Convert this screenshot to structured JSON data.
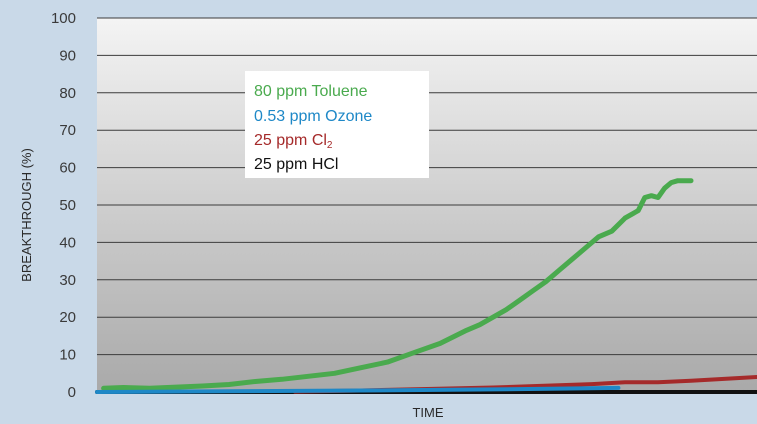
{
  "chart_data": {
    "type": "line",
    "title": "",
    "xlabel": "TIME",
    "ylabel": "BREAKTHROUGH (%)",
    "ylim": [
      0,
      100
    ],
    "xlim": [
      0,
      100
    ],
    "yticks": [
      "0",
      "10",
      "20",
      "30",
      "40",
      "50",
      "60",
      "70",
      "80",
      "90",
      "100"
    ],
    "grid": true,
    "legend_position": "top-left",
    "background_gradient": [
      "#f4f4f4",
      "#a9a9a9"
    ],
    "series": [
      {
        "name": "25 ppm HCl",
        "color": "#111111",
        "x": [
          0,
          20,
          40,
          60,
          80,
          100
        ],
        "y": [
          0,
          0,
          0,
          0,
          0,
          0
        ]
      },
      {
        "name": "25 ppm Cl",
        "name_subscript": "2",
        "color": "#a52a2a",
        "x": [
          30,
          40,
          50,
          60,
          65,
          70,
          75,
          80,
          85,
          90,
          92,
          95,
          100
        ],
        "y": [
          0.1,
          0.4,
          0.8,
          1.2,
          1.5,
          1.8,
          2.1,
          2.6,
          2.6,
          3.0,
          3.2,
          3.5,
          4.0
        ]
      },
      {
        "name": "80 ppm Toluene",
        "color": "#4aaa4e",
        "x": [
          1,
          4,
          8,
          12,
          16,
          20,
          24,
          28,
          32,
          36,
          40,
          44,
          48,
          52,
          56,
          58,
          60,
          62,
          64,
          66,
          68,
          70,
          72,
          74,
          75,
          76,
          78,
          80,
          82,
          83,
          84,
          85,
          86,
          87,
          88,
          89,
          90
        ],
        "y": [
          1,
          1.2,
          1,
          1.3,
          1.6,
          2,
          2.8,
          3.4,
          4.2,
          5,
          6.5,
          8,
          10.5,
          13,
          16.5,
          18,
          20,
          22,
          24.5,
          27,
          29.5,
          32.5,
          35.5,
          38.5,
          40,
          41.5,
          43,
          46.5,
          48.5,
          52,
          52.5,
          52,
          54.5,
          56,
          56.5,
          56.5,
          56.5
        ]
      },
      {
        "name": "0.53 ppm Ozone",
        "color": "#1e88c7",
        "x": [
          0,
          20,
          40,
          60,
          70,
          79
        ],
        "y": [
          0,
          0.2,
          0.4,
          0.7,
          0.9,
          1.1
        ]
      }
    ]
  }
}
